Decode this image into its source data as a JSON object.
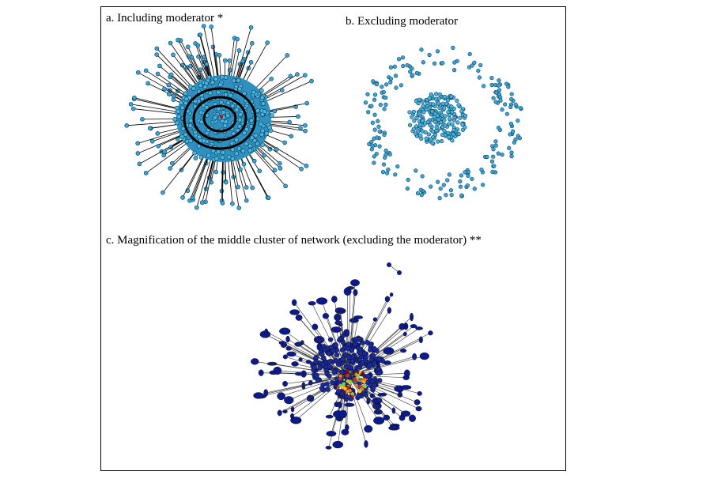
{
  "panels": [
    {
      "label": "a. Including moderator *"
    },
    {
      "label": "b. Excluding moderator"
    },
    {
      "label": "c. Magnification of the middle cluster of network (excluding the moderator) **"
    }
  ]
}
